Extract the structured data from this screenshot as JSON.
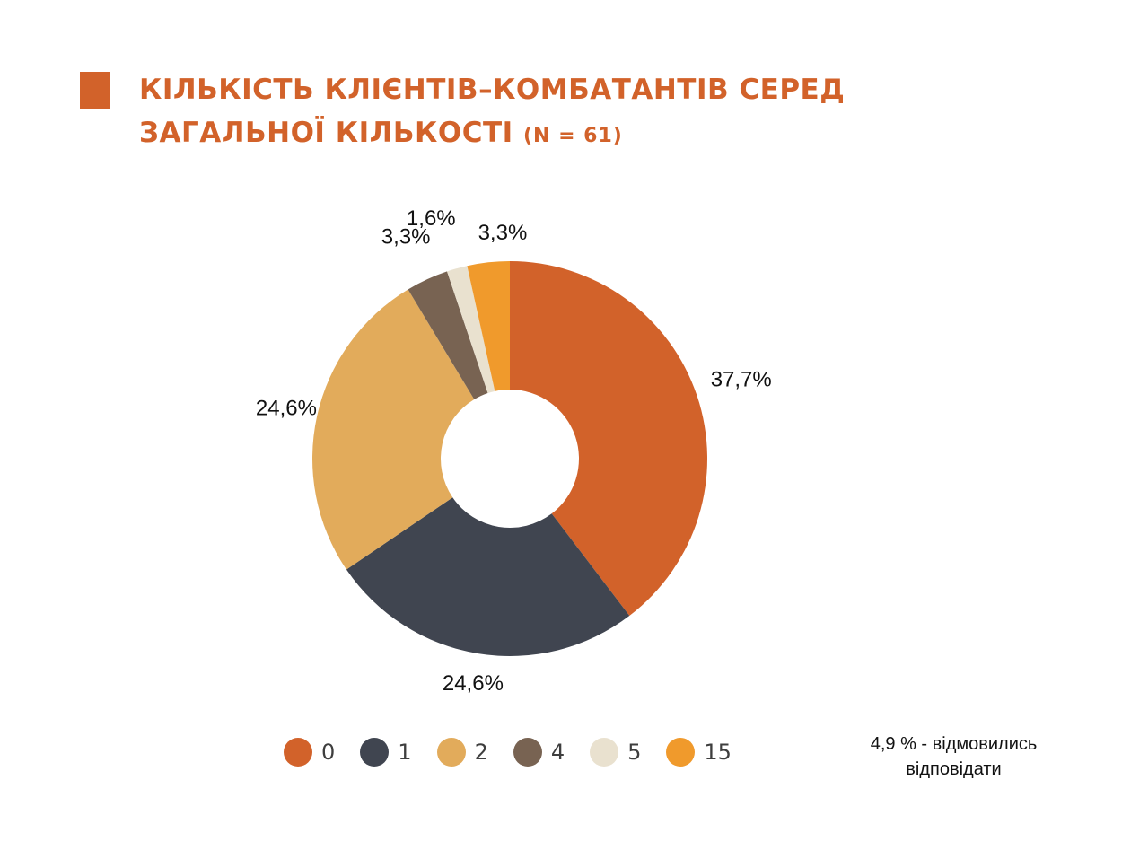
{
  "chart_data": {
    "type": "pie",
    "title": "КІЛЬКІСТЬ КЛІЄНТІВ–КОМБАТАНТІВ СЕРЕД ЗАГАЛЬНОЇ КІЛЬКОСТІ",
    "subtitle": "(N = 61)",
    "donut": true,
    "categories": [
      "0",
      "1",
      "2",
      "4",
      "5",
      "15"
    ],
    "values": [
      37.7,
      24.6,
      24.6,
      3.3,
      1.6,
      3.3
    ],
    "labels": [
      "37,7%",
      "24,6%",
      "24,6%",
      "3,3%",
      "1,6%",
      "3,3%"
    ],
    "colors": [
      "#D2622A",
      "#404550",
      "#E2AB5B",
      "#786352",
      "#E9E1CF",
      "#F09A2C"
    ],
    "legend_position": "bottom",
    "annotation": "4,9 % - відмовились відповідати"
  },
  "accent_color": "#D2622A"
}
